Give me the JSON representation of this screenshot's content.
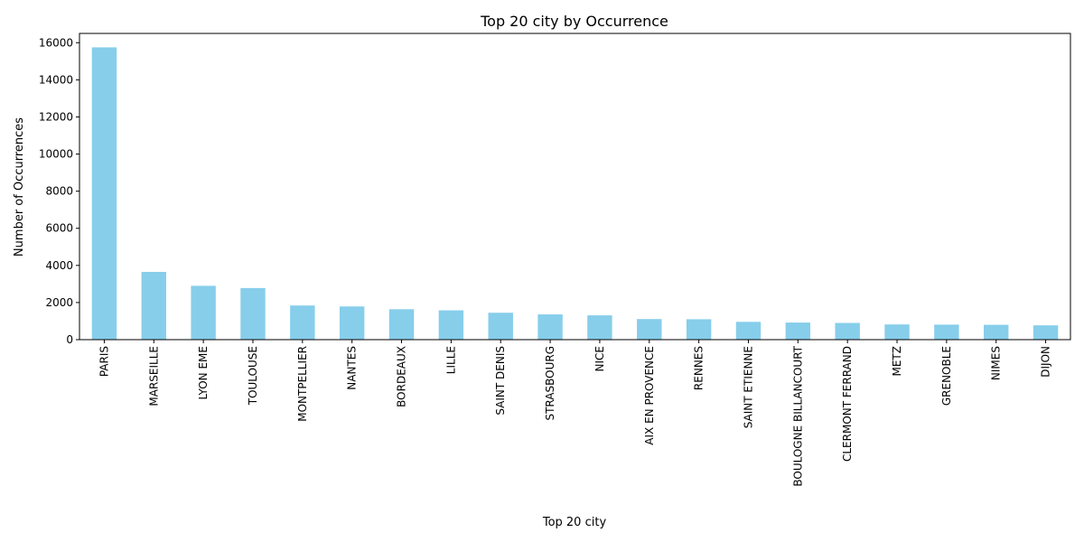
{
  "chart_data": {
    "type": "bar",
    "title": "Top 20 city by Occurrence",
    "xlabel": "Top 20 city",
    "ylabel": "Number of Occurrences",
    "ylim": [
      0,
      16500
    ],
    "yticks": [
      0,
      2000,
      4000,
      6000,
      8000,
      10000,
      12000,
      14000,
      16000
    ],
    "grid": false,
    "bar_color": "#87CEEB",
    "categories": [
      "PARIS",
      "MARSEILLE",
      "LYON EME",
      "TOULOUSE",
      "MONTPELLIER",
      "NANTES",
      "BORDEAUX",
      "LILLE",
      "SAINT DENIS",
      "STRASBOURG",
      "NICE",
      "AIX EN PROVENCE",
      "RENNES",
      "SAINT ETIENNE",
      "BOULOGNE BILLANCOURT",
      "CLERMONT FERRAND",
      "METZ",
      "GRENOBLE",
      "NIMES",
      "DIJON"
    ],
    "values": [
      15750,
      3650,
      2900,
      2780,
      1840,
      1790,
      1640,
      1580,
      1450,
      1360,
      1310,
      1110,
      1100,
      960,
      920,
      900,
      820,
      810,
      800,
      770
    ]
  }
}
